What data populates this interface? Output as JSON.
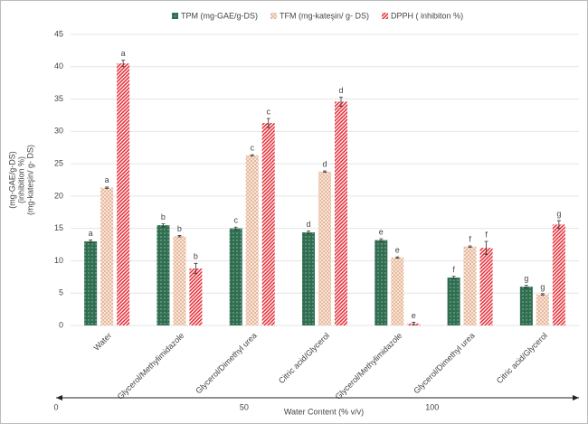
{
  "chart_data": {
    "type": "bar",
    "categories": [
      "Water",
      "Glycerol/Methylimidazole",
      "Glycerol/Dimethyl urea",
      "Citric acid/Glycerol",
      "Glycerol/Methylimidazole",
      "Glycerol/Dimethyl urea",
      "Citric acid/Glycerol"
    ],
    "series": [
      {
        "name": "TPM (mg-GAE/g-DS)",
        "color": "#2f6e50",
        "values": [
          13,
          15.5,
          15,
          14.4,
          13.2,
          7.4,
          6
        ],
        "errors": [
          0.2,
          0.2,
          0.2,
          0.2,
          0.2,
          0.2,
          0.2
        ],
        "letters": [
          "a",
          "b",
          "c",
          "d",
          "e",
          "f",
          "g"
        ]
      },
      {
        "name": "TFM (mg-kateşin/ g- DS)",
        "color": "#e8b89a",
        "values": [
          21.3,
          13.8,
          26.3,
          23.8,
          10.5,
          12.2,
          4.8
        ],
        "errors": [
          0.1,
          0.1,
          0.1,
          0.1,
          0.1,
          0.1,
          0.1
        ],
        "letters": [
          "a",
          "b",
          "c",
          "d",
          "e",
          "f",
          "g"
        ]
      },
      {
        "name": "DPPH ( inhibiton %)",
        "color": "#e8323c",
        "values": [
          40.5,
          8.8,
          31.3,
          34.6,
          0.3,
          12,
          15.6
        ],
        "errors": [
          0.5,
          0.8,
          0.7,
          0.7,
          0.2,
          1,
          0.6
        ],
        "letters": [
          "a",
          "b",
          "c",
          "d",
          "e",
          "f",
          "g"
        ]
      }
    ],
    "ylabel": [
      "(mg-GAE/g-DS)",
      "(inhibition %)",
      "(mg-kateşin/ g- DS)"
    ],
    "ylim": [
      0,
      45
    ],
    "yticks": [
      0,
      5,
      10,
      15,
      20,
      25,
      30,
      35,
      40,
      45
    ],
    "grid": true,
    "legend": "top",
    "water_axis": {
      "label": "Water Content (% v/v)",
      "xlim": [
        0,
        139
      ],
      "xticks": [
        0,
        50,
        100
      ]
    }
  }
}
